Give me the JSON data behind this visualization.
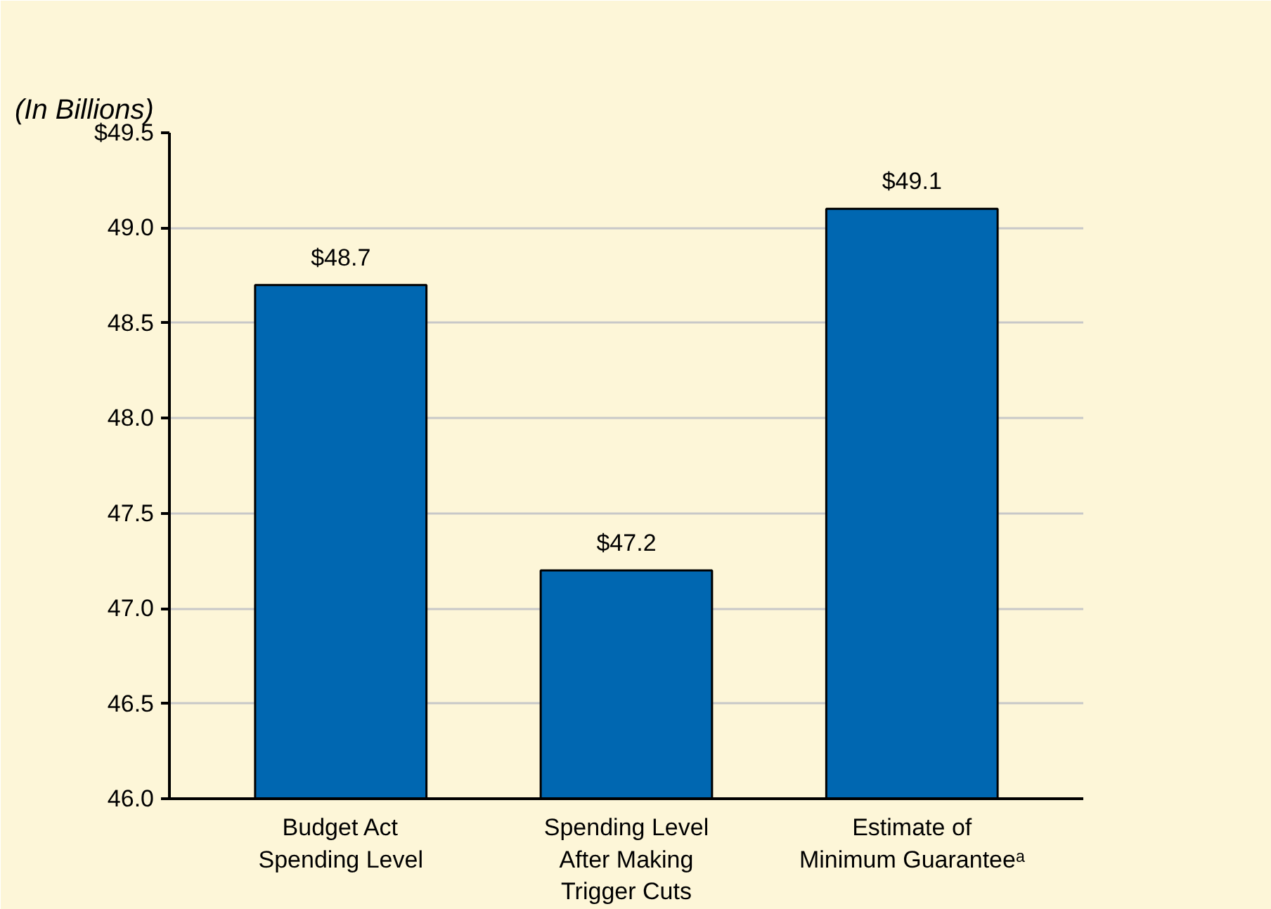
{
  "chart_data": {
    "type": "bar",
    "subtitle": "(In Billions)",
    "categories": [
      "Budget Act\nSpending Level",
      "Spending Level\nAfter Making\nTrigger Cuts",
      "Estimate of\nMinimum Guaranteeᵃ"
    ],
    "values": [
      48.7,
      47.2,
      49.1
    ],
    "color": "#0067b1",
    "value_labels": [
      "$48.7",
      "$47.2",
      "$49.1"
    ],
    "ylim": [
      46,
      49.5
    ],
    "yticks": [
      {
        "value": 46,
        "label": "46.0"
      },
      46.5,
      {
        "value": 47,
        "label": "47.0"
      },
      47.5,
      {
        "value": 48,
        "label": "48.0"
      },
      48.5,
      {
        "value": 49,
        "label": "49.0"
      },
      {
        "value": 49.5,
        "label": "$49.5"
      }
    ],
    "grid": "y"
  }
}
